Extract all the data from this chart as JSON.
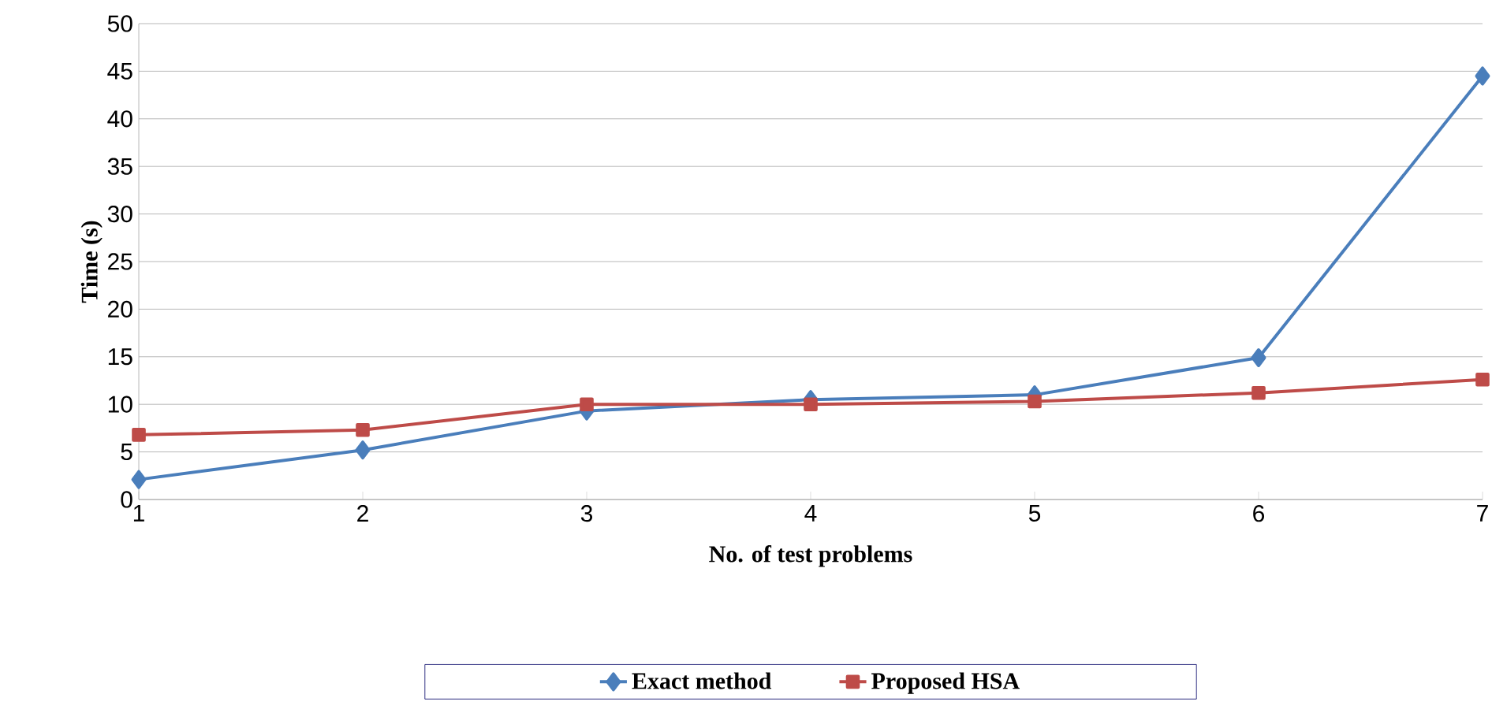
{
  "chart_data": {
    "type": "line",
    "xlabel": "No. of test problems",
    "ylabel": "Time (s)",
    "x": [
      1,
      2,
      3,
      4,
      5,
      6,
      7
    ],
    "series": [
      {
        "name": "Exact method",
        "color": "#4a7ebb",
        "marker": "diamond",
        "values": [
          2.1,
          5.2,
          9.3,
          10.5,
          11,
          14.9,
          44.5
        ]
      },
      {
        "name": "Proposed HSA",
        "color": "#be4b48",
        "marker": "square",
        "values": [
          6.8,
          7.3,
          10,
          10,
          10.3,
          11.2,
          12.6
        ]
      }
    ],
    "xlim": [
      1,
      7
    ],
    "xticks": [
      1,
      2,
      3,
      4,
      5,
      6,
      7
    ],
    "ylim": [
      0,
      50
    ],
    "yticks": [
      0,
      5,
      10,
      15,
      20,
      25,
      30,
      35,
      40,
      45,
      50
    ],
    "grid": "y",
    "legend": "bottom",
    "line_style": "solid"
  }
}
